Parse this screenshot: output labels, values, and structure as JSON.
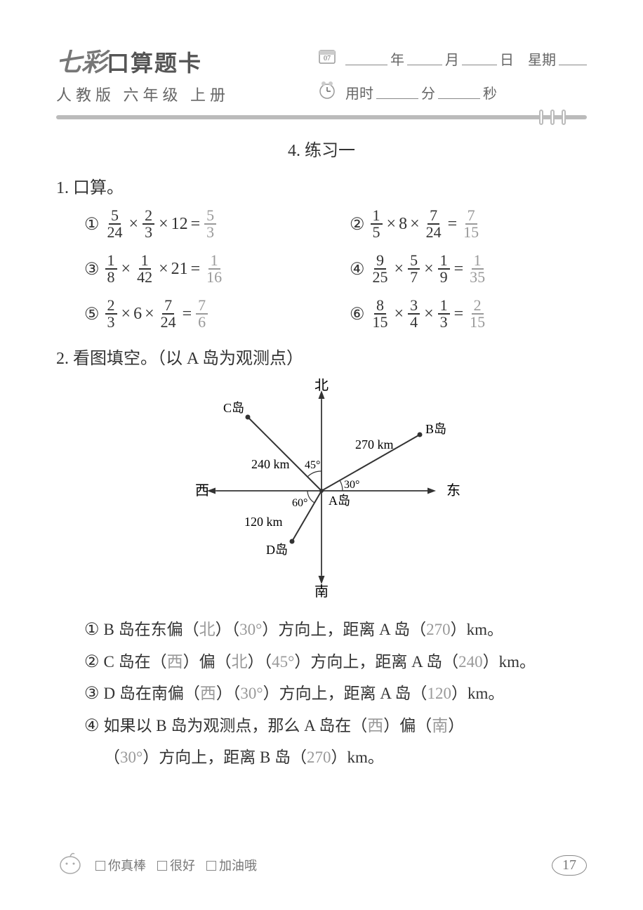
{
  "header": {
    "brand": "七彩",
    "brand_suffix": "口算题卡",
    "subtitle": "人教版  六年级  上册",
    "date_labels": {
      "year": "年",
      "month": "月",
      "day": "日",
      "weekday": "星期"
    },
    "time_labels": {
      "prefix": "用时",
      "min": "分",
      "sec": "秒"
    },
    "calendar_num": "07"
  },
  "section_title": "4. 练习一",
  "q1": {
    "label": "1. 口算。",
    "items": [
      {
        "n": "①",
        "parts": [
          {
            "t": "frac",
            "num": "5",
            "den": "24"
          },
          {
            "t": "op",
            "v": "×"
          },
          {
            "t": "frac",
            "num": "2",
            "den": "3"
          },
          {
            "t": "op",
            "v": "×"
          },
          {
            "t": "int",
            "v": "12"
          },
          {
            "t": "op",
            "v": "="
          }
        ],
        "ans": {
          "num": "5",
          "den": "3"
        }
      },
      {
        "n": "②",
        "parts": [
          {
            "t": "frac",
            "num": "1",
            "den": "5"
          },
          {
            "t": "op",
            "v": "×"
          },
          {
            "t": "int",
            "v": "8"
          },
          {
            "t": "op",
            "v": "×"
          },
          {
            "t": "frac",
            "num": "7",
            "den": "24"
          },
          {
            "t": "op",
            "v": "="
          }
        ],
        "ans": {
          "num": "7",
          "den": "15"
        }
      },
      {
        "n": "③",
        "parts": [
          {
            "t": "frac",
            "num": "1",
            "den": "8"
          },
          {
            "t": "op",
            "v": "×"
          },
          {
            "t": "frac",
            "num": "1",
            "den": "42"
          },
          {
            "t": "op",
            "v": "×"
          },
          {
            "t": "int",
            "v": "21"
          },
          {
            "t": "op",
            "v": "="
          }
        ],
        "ans": {
          "num": "1",
          "den": "16"
        }
      },
      {
        "n": "④",
        "parts": [
          {
            "t": "frac",
            "num": "9",
            "den": "25"
          },
          {
            "t": "op",
            "v": "×"
          },
          {
            "t": "frac",
            "num": "5",
            "den": "7"
          },
          {
            "t": "op",
            "v": "×"
          },
          {
            "t": "frac",
            "num": "1",
            "den": "9"
          },
          {
            "t": "op",
            "v": "="
          }
        ],
        "ans": {
          "num": "1",
          "den": "35"
        }
      },
      {
        "n": "⑤",
        "parts": [
          {
            "t": "frac",
            "num": "2",
            "den": "3"
          },
          {
            "t": "op",
            "v": "×"
          },
          {
            "t": "int",
            "v": "6"
          },
          {
            "t": "op",
            "v": "×"
          },
          {
            "t": "frac",
            "num": "7",
            "den": "24"
          },
          {
            "t": "op",
            "v": "="
          }
        ],
        "ans": {
          "num": "7",
          "den": "6"
        }
      },
      {
        "n": "⑥",
        "parts": [
          {
            "t": "frac",
            "num": "8",
            "den": "15"
          },
          {
            "t": "op",
            "v": "×"
          },
          {
            "t": "frac",
            "num": "3",
            "den": "4"
          },
          {
            "t": "op",
            "v": "×"
          },
          {
            "t": "frac",
            "num": "1",
            "den": "3"
          },
          {
            "t": "op",
            "v": "="
          }
        ],
        "ans": {
          "num": "2",
          "den": "15"
        }
      }
    ]
  },
  "q2": {
    "label": "2. 看图填空。（以 A 岛为观测点）",
    "diagram": {
      "compass": {
        "north": "北",
        "south": "南",
        "east": "东",
        "west": "西"
      },
      "center_label": "A岛",
      "islands": {
        "B": {
          "label": "B岛",
          "dist": "270 km",
          "angle_label": "30°"
        },
        "C": {
          "label": "C岛",
          "dist": "240 km",
          "angle_label": "45°"
        },
        "D": {
          "label": "D岛",
          "dist": "120 km",
          "angle_label": "60°"
        }
      },
      "colors": {
        "line": "#333333",
        "text": "#333333"
      }
    },
    "fills": [
      {
        "n": "①",
        "pre": "B 岛在东偏（",
        "a1": "北",
        "mid1": "）（",
        "a2": "30°",
        "mid2": "）方向上，距离 A 岛（",
        "a3": "270",
        "post": "）km。"
      },
      {
        "n": "②",
        "pre": "C 岛在（",
        "a1": "西",
        "mid1": "）偏（",
        "a2": "北",
        "mid2": "）（",
        "a3": "45°",
        "mid3": "）方向上，距离 A 岛（",
        "a4": "240",
        "post": "）km。"
      },
      {
        "n": "③",
        "pre": "D 岛在南偏（",
        "a1": "西",
        "mid1": "）（",
        "a2": "30°",
        "mid2": "）方向上，距离 A 岛（",
        "a3": "120",
        "post": "）km。"
      },
      {
        "n": "④",
        "pre": "如果以 B 岛为观测点，那么 A 岛在（",
        "a1": "西",
        "mid1": "）偏（",
        "a2": "南",
        "mid2": "）",
        "line2_pre": "（",
        "a3": "30°",
        "mid3": "）方向上，距离 B 岛（",
        "a4": "270",
        "post": "）km。"
      }
    ]
  },
  "footer": {
    "opts": [
      "你真棒",
      "很好",
      "加油哦"
    ],
    "page": "17"
  }
}
